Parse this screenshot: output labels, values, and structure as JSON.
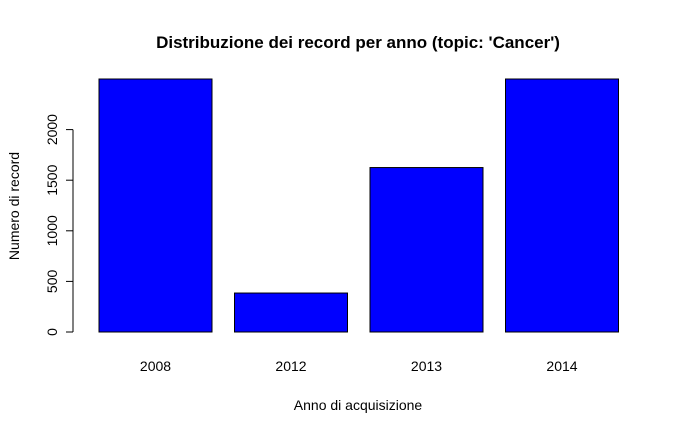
{
  "chart_data": {
    "type": "bar",
    "title": "Distribuzione dei record per anno (topic: 'Cancer')",
    "xlabel": "Anno di acquisizione",
    "ylabel": "Numero di record",
    "categories": [
      "2008",
      "2012",
      "2013",
      "2014"
    ],
    "values": [
      2500,
      385,
      1625,
      2500
    ],
    "ylim": [
      0,
      2500
    ],
    "yticks": [
      0,
      500,
      1000,
      1500,
      2000
    ],
    "ytick_labels": [
      "0",
      "500",
      "1000",
      "1500",
      "2000"
    ],
    "bar_color": "#0000ff",
    "bar_border_color": "#000000",
    "grid": false,
    "legend": "none"
  }
}
